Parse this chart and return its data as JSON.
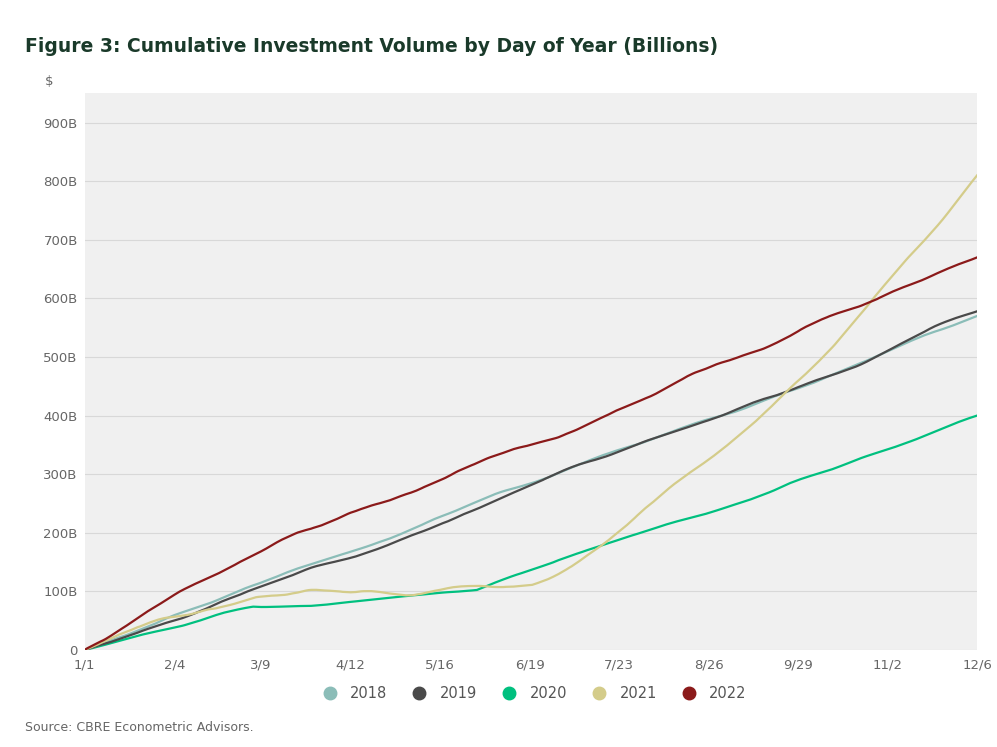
{
  "title": "Figure 3: Cumulative Investment Volume by Day of Year (Billions)",
  "source": "Source: CBRE Econometric Advisors.",
  "x_ticks": [
    "1/1",
    "2/4",
    "3/9",
    "4/12",
    "5/16",
    "6/19",
    "7/23",
    "8/26",
    "9/29",
    "11/2",
    "12/6"
  ],
  "x_tick_days": [
    1,
    35,
    68,
    102,
    136,
    170,
    204,
    238,
    272,
    306,
    340
  ],
  "y_ticks": [
    0,
    100,
    200,
    300,
    400,
    500,
    600,
    700,
    800,
    900
  ],
  "series_colors": {
    "2018": "#8bbdb8",
    "2019": "#4a4a4a",
    "2020": "#00c07f",
    "2021": "#d4cc8a",
    "2022": "#8b1a1a"
  },
  "background_color": "#ffffff",
  "plot_bg_color": "#f0f0f0",
  "grid_color": "#d8d8d8",
  "title_color": "#1a3a2a",
  "title_bar_color": "#1a3a2a",
  "legend_labels": [
    "2018",
    "2019",
    "2020",
    "2021",
    "2022"
  ],
  "legend_colors": [
    "#8bbdb8",
    "#4a4a4a",
    "#00c07f",
    "#d4cc8a",
    "#8b1a1a"
  ],
  "linewidth": 1.6,
  "ylim": [
    0,
    950
  ],
  "xlim": [
    1,
    340
  ]
}
